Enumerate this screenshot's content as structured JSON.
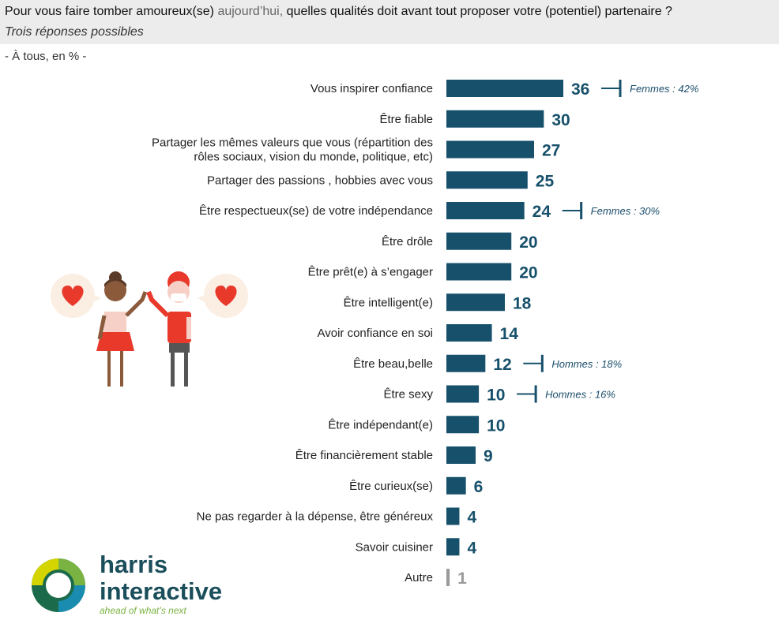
{
  "header": {
    "question_main": "Pour vous faire tomber amoureux(se)",
    "question_grey": "aujourd’hui,",
    "question_rest": "quelles qualités doit avant tout proposer votre (potentiel) partenaire ?",
    "subtitle": "Trois réponses possibles",
    "base": "- À tous, en % -"
  },
  "logo": {
    "line1": "harris",
    "line2": "interactive",
    "tagline": "ahead of what’s next"
  },
  "colors": {
    "bar": "#17506b",
    "value": "#17506b",
    "muted": "#9a9a9a",
    "header_bg": "#ececec"
  },
  "chart_data": {
    "type": "bar",
    "orientation": "horizontal",
    "categories": [
      "Vous inspirer confiance",
      "Être fiable",
      "Partager les mêmes valeurs que vous (répartition des rôles sociaux, vision du monde, politique, etc)",
      "Partager des passions , hobbies avec vous",
      "Être respectueux(se) de votre indépendance",
      "Être drôle",
      "Être prêt(e) à s’engager",
      "Être intelligent(e)",
      "Avoir confiance en soi",
      "Être beau,belle",
      "Être sexy",
      "Être indépendant(e)",
      "Être financièrement stable",
      "Être curieux(se)",
      "Ne pas regarder à la dépense, être généreux",
      "Savoir cuisiner",
      "Autre"
    ],
    "category_lines": [
      [
        "Vous inspirer confiance"
      ],
      [
        "Être fiable"
      ],
      [
        "Partager les mêmes valeurs que vous (répartition des",
        "rôles sociaux, vision du monde, politique, etc)"
      ],
      [
        "Partager des passions , hobbies avec vous"
      ],
      [
        "Être respectueux(se) de votre indépendance"
      ],
      [
        "Être drôle"
      ],
      [
        "Être prêt(e) à s’engager"
      ],
      [
        "Être intelligent(e)"
      ],
      [
        "Avoir confiance en soi"
      ],
      [
        "Être beau,belle"
      ],
      [
        "Être sexy"
      ],
      [
        "Être indépendant(e)"
      ],
      [
        "Être financièrement stable"
      ],
      [
        "Être curieux(se)"
      ],
      [
        "Ne pas regarder à la dépense, être généreux"
      ],
      [
        "Savoir cuisiner"
      ],
      [
        "Autre"
      ]
    ],
    "values": [
      36,
      30,
      27,
      25,
      24,
      20,
      20,
      18,
      14,
      12,
      10,
      10,
      9,
      6,
      4,
      4,
      1
    ],
    "annotations": [
      {
        "index": 0,
        "text": "Femmes : 42%"
      },
      {
        "index": 4,
        "text": "Femmes : 30%"
      },
      {
        "index": 9,
        "text": "Hommes : 18%"
      },
      {
        "index": 10,
        "text": "Hommes : 16%"
      }
    ],
    "unit": "%",
    "xlim": [
      0,
      36
    ]
  }
}
